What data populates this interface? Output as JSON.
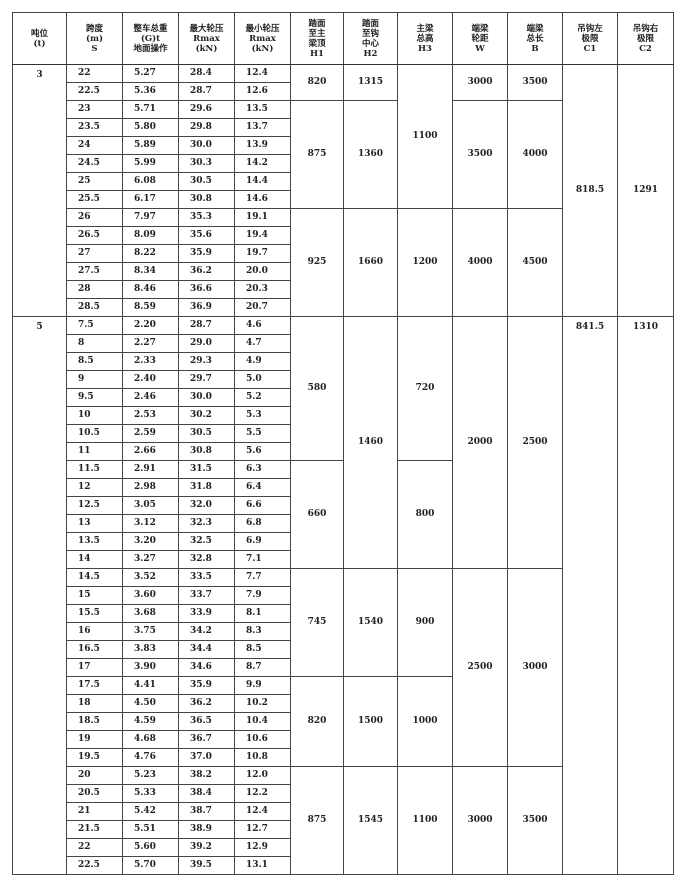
{
  "headers": [
    [
      "吨位",
      "(t)"
    ],
    [
      "跨度",
      "(m)",
      "S"
    ],
    [
      "整车总重",
      "(G)t",
      "地面操作"
    ],
    [
      "最大轮压",
      "Rmax",
      "(kN)"
    ],
    [
      "最小轮压",
      "Rmax",
      "(kN)"
    ],
    [
      "踏面",
      "至主",
      "梁顶",
      "H1"
    ],
    [
      "踏面",
      "至钩",
      "中心",
      "H2"
    ],
    [
      "主梁",
      "总高",
      "H3"
    ],
    [
      "端梁",
      "轮距",
      "W"
    ],
    [
      "端梁",
      "总长",
      "B"
    ],
    [
      "吊钩左",
      "极限",
      "C1"
    ],
    [
      "吊钩右",
      "极限",
      "C2"
    ]
  ],
  "groups": [
    {
      "tonnage": "3",
      "rows": [
        [
          "22",
          "5.27",
          "28.4",
          "12.4"
        ],
        [
          "22.5",
          "5.36",
          "28.7",
          "12.6"
        ],
        [
          "23",
          "5.71",
          "29.6",
          "13.5"
        ],
        [
          "23.5",
          "5.80",
          "29.8",
          "13.7"
        ],
        [
          "24",
          "5.89",
          "30.0",
          "13.9"
        ],
        [
          "24.5",
          "5.99",
          "30.3",
          "14.2"
        ],
        [
          "25",
          "6.08",
          "30.5",
          "14.4"
        ],
        [
          "25.5",
          "6.17",
          "30.8",
          "14.6"
        ],
        [
          "26",
          "7.97",
          "35.3",
          "19.1"
        ],
        [
          "26.5",
          "8.09",
          "35.6",
          "19.4"
        ],
        [
          "27",
          "8.22",
          "35.9",
          "19.7"
        ],
        [
          "27.5",
          "8.34",
          "36.2",
          "20.0"
        ],
        [
          "28",
          "8.46",
          "36.6",
          "20.3"
        ],
        [
          "28.5",
          "8.59",
          "36.9",
          "20.7"
        ]
      ],
      "merged": {
        "H1": [
          {
            "span": 2,
            "value": "820"
          },
          {
            "span": 6,
            "value": "875"
          },
          {
            "span": 6,
            "value": "925"
          }
        ],
        "H2": [
          {
            "span": 2,
            "value": "1315"
          },
          {
            "span": 6,
            "value": "1360"
          },
          {
            "span": 6,
            "value": "1660"
          }
        ],
        "H3": [
          {
            "span": 8,
            "value": "1100"
          },
          {
            "span": 6,
            "value": "1200"
          }
        ],
        "W": [
          {
            "span": 2,
            "value": "3000"
          },
          {
            "span": 6,
            "value": "3500"
          },
          {
            "span": 6,
            "value": "4000"
          }
        ],
        "B": [
          {
            "span": 2,
            "value": "3500"
          },
          {
            "span": 6,
            "value": "4000"
          },
          {
            "span": 6,
            "value": "4500"
          }
        ],
        "C1": [
          {
            "span": 14,
            "value": "818.5"
          }
        ],
        "C2": [
          {
            "span": 14,
            "value": "1291"
          }
        ]
      },
      "limits_top": false
    },
    {
      "tonnage": "5",
      "rows": [
        [
          "7.5",
          "2.20",
          "28.7",
          "4.6"
        ],
        [
          "8",
          "2.27",
          "29.0",
          "4.7"
        ],
        [
          "8.5",
          "2.33",
          "29.3",
          "4.9"
        ],
        [
          "9",
          "2.40",
          "29.7",
          "5.0"
        ],
        [
          "9.5",
          "2.46",
          "30.0",
          "5.2"
        ],
        [
          "10",
          "2.53",
          "30.2",
          "5.3"
        ],
        [
          "10.5",
          "2.59",
          "30.5",
          "5.5"
        ],
        [
          "11",
          "2.66",
          "30.8",
          "5.6"
        ],
        [
          "11.5",
          "2.91",
          "31.5",
          "6.3"
        ],
        [
          "12",
          "2.98",
          "31.8",
          "6.4"
        ],
        [
          "12.5",
          "3.05",
          "32.0",
          "6.6"
        ],
        [
          "13",
          "3.12",
          "32.3",
          "6.8"
        ],
        [
          "13.5",
          "3.20",
          "32.5",
          "6.9"
        ],
        [
          "14",
          "3.27",
          "32.8",
          "7.1"
        ],
        [
          "14.5",
          "3.52",
          "33.5",
          "7.7"
        ],
        [
          "15",
          "3.60",
          "33.7",
          "7.9"
        ],
        [
          "15.5",
          "3.68",
          "33.9",
          "8.1"
        ],
        [
          "16",
          "3.75",
          "34.2",
          "8.3"
        ],
        [
          "16.5",
          "3.83",
          "34.4",
          "8.5"
        ],
        [
          "17",
          "3.90",
          "34.6",
          "8.7"
        ],
        [
          "17.5",
          "4.41",
          "35.9",
          "9.9"
        ],
        [
          "18",
          "4.50",
          "36.2",
          "10.2"
        ],
        [
          "18.5",
          "4.59",
          "36.5",
          "10.4"
        ],
        [
          "19",
          "4.68",
          "36.7",
          "10.6"
        ],
        [
          "19.5",
          "4.76",
          "37.0",
          "10.8"
        ],
        [
          "20",
          "5.23",
          "38.2",
          "12.0"
        ],
        [
          "20.5",
          "5.33",
          "38.4",
          "12.2"
        ],
        [
          "21",
          "5.42",
          "38.7",
          "12.4"
        ],
        [
          "21.5",
          "5.51",
          "38.9",
          "12.7"
        ],
        [
          "22",
          "5.60",
          "39.2",
          "12.9"
        ],
        [
          "22.5",
          "5.70",
          "39.5",
          "13.1"
        ]
      ],
      "merged": {
        "H1": [
          {
            "span": 8,
            "value": "580"
          },
          {
            "span": 6,
            "value": "660"
          },
          {
            "span": 6,
            "value": "745"
          },
          {
            "span": 5,
            "value": "820"
          },
          {
            "span": 6,
            "value": "875"
          }
        ],
        "H2": [
          {
            "span": 14,
            "value": "1460"
          },
          {
            "span": 6,
            "value": "1540"
          },
          {
            "span": 5,
            "value": "1500"
          },
          {
            "span": 6,
            "value": "1545"
          }
        ],
        "H3": [
          {
            "span": 8,
            "value": "720"
          },
          {
            "span": 6,
            "value": "800"
          },
          {
            "span": 6,
            "value": "900"
          },
          {
            "span": 5,
            "value": "1000"
          },
          {
            "span": 6,
            "value": "1100"
          }
        ],
        "W": [
          {
            "span": 14,
            "value": "2000"
          },
          {
            "span": 11,
            "value": "2500"
          },
          {
            "span": 6,
            "value": "3000"
          }
        ],
        "B": [
          {
            "span": 14,
            "value": "2500"
          },
          {
            "span": 11,
            "value": "3000"
          },
          {
            "span": 6,
            "value": "3500"
          }
        ],
        "C1": [
          {
            "span": 31,
            "value": "841.5"
          }
        ],
        "C2": [
          {
            "span": 31,
            "value": "1310"
          }
        ]
      },
      "limits_top": true
    }
  ]
}
